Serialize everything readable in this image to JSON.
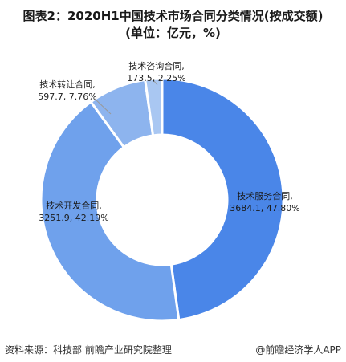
{
  "title_line1": "图表2：2020H1中国技术市场合同分类情况(按成交额)",
  "title_line2": "(单位：亿元，%)",
  "source": "资料来源：科技部 前瞻产业研究院整理",
  "brand": "@前瞻经济学人APP",
  "colors": {
    "services": "#4A86E8",
    "development": "#6FA1EC",
    "transfer": "#8DB4EE",
    "consulting": "#A9C7F2"
  },
  "chart_data": {
    "type": "pie",
    "donut": true,
    "title": "2020H1中国技术市场合同分类情况(按成交额)",
    "unit": "亿元，%",
    "slices": [
      {
        "name": "技术服务合同",
        "value": 3684.1,
        "percent": 47.8,
        "value_label": "3684.1,  47.80%"
      },
      {
        "name": "技术开发合同",
        "value": 3251.9,
        "percent": 42.19,
        "value_label": "3251.9,  42.19%"
      },
      {
        "name": "技术转让合同",
        "value": 597.7,
        "percent": 7.76,
        "value_label": "597.7,  7.76%"
      },
      {
        "name": "技术咨询合同",
        "value": 173.5,
        "percent": 2.25,
        "value_label": "173.5,  2.25%"
      }
    ]
  }
}
